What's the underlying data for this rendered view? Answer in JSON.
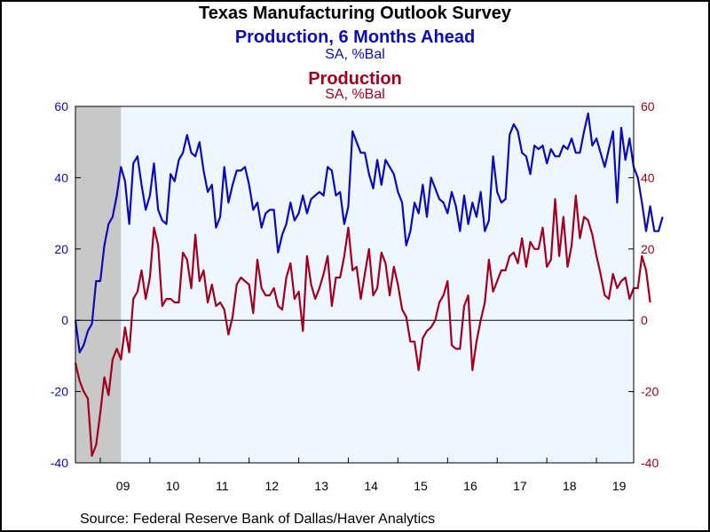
{
  "title": "Texas Manufacturing Outlook Survey",
  "series_titles": [
    {
      "title": "Production, 6 Months Ahead",
      "unit": "SA, %Bal"
    },
    {
      "title": "Production",
      "unit": "SA, %Bal"
    }
  ],
  "source": "Source:  Federal Reserve Bank of Dallas/Haver Analytics",
  "colors": {
    "blue": "#0b0bb8",
    "red": "#a3001e",
    "plot_bg": "#eef6ff",
    "recession": "#c8c8c8"
  },
  "chart_data": {
    "type": "line",
    "x_tick_labels": [
      "09",
      "10",
      "11",
      "12",
      "13",
      "14",
      "15",
      "16",
      "17",
      "18",
      "19"
    ],
    "x_range": [
      "2008-07",
      "2019-10"
    ],
    "ylim": [
      -40,
      60
    ],
    "y_ticks": [
      -40,
      -20,
      0,
      20,
      40,
      60
    ],
    "y_ticks_right": [
      -40,
      -20,
      0,
      20,
      40,
      60
    ],
    "grid": false,
    "zero_line": true,
    "recession_shading": [
      "2008-07",
      "2009-06"
    ],
    "series": [
      {
        "axis": "left",
        "color": "#0b0bb8",
        "start": "2008-07",
        "values": [
          0,
          -9,
          -7,
          -3,
          -1,
          11,
          11,
          21,
          27,
          29,
          35,
          43,
          39,
          27,
          44,
          46,
          38,
          31,
          35,
          44,
          31,
          28,
          27,
          41,
          39,
          45,
          47,
          52,
          47,
          46,
          50,
          42,
          36,
          38,
          26,
          29,
          43,
          33,
          38,
          42,
          42,
          43,
          38,
          31,
          33,
          26,
          30,
          31,
          31,
          19,
          24,
          27,
          33,
          28,
          30,
          35,
          30,
          34,
          35,
          36,
          35,
          43,
          42,
          35,
          36,
          27,
          32,
          53,
          50,
          47,
          47,
          41,
          37,
          45,
          38,
          45,
          43,
          41,
          36,
          33,
          21,
          25,
          33,
          30,
          38,
          29,
          40,
          37,
          34,
          33,
          30,
          36,
          32,
          25,
          35,
          27,
          33,
          29,
          36,
          25,
          28,
          46,
          36,
          33,
          34,
          52,
          55,
          53,
          47,
          46,
          41,
          49,
          48,
          49,
          44,
          48,
          46,
          46,
          49,
          48,
          51,
          47,
          47,
          53,
          58,
          49,
          51,
          47,
          43,
          48,
          53,
          33,
          54,
          45,
          51,
          43,
          40,
          33,
          25,
          32,
          25,
          25,
          29
        ]
      },
      {
        "axis": "left",
        "color": "#a3001e",
        "start": "2008-07",
        "values": [
          -12,
          -17,
          -20,
          -22,
          -38,
          -35,
          -26,
          -16,
          -21,
          -11,
          -8,
          -11,
          -2,
          -9,
          6,
          8,
          14,
          6,
          12,
          26,
          21,
          4,
          6,
          6,
          5,
          5,
          19,
          17,
          9,
          24,
          11,
          14,
          5,
          10,
          4,
          5,
          3,
          -4,
          1,
          10,
          12,
          11,
          10,
          2,
          17,
          9,
          7,
          7,
          9,
          4,
          3,
          12,
          16,
          6,
          8,
          -3,
          18,
          10,
          6,
          9,
          13,
          18,
          4,
          12,
          12,
          18,
          26,
          14,
          15,
          6,
          13,
          20,
          7,
          9,
          19,
          16,
          7,
          15,
          10,
          3,
          1,
          -6,
          -6,
          -14,
          -5,
          -3,
          -2,
          0,
          5,
          7,
          11,
          -7,
          -8,
          -8,
          4,
          7,
          -14,
          -6,
          0,
          5,
          17,
          8,
          11,
          14,
          14,
          18,
          19,
          16,
          23,
          15,
          22,
          20,
          20,
          26,
          15,
          17,
          34,
          18,
          29,
          15,
          21,
          35,
          23,
          29,
          28,
          24,
          18,
          13,
          7,
          6,
          13,
          9,
          11,
          12,
          6,
          9,
          9,
          18,
          14,
          5
        ]
      }
    ]
  }
}
